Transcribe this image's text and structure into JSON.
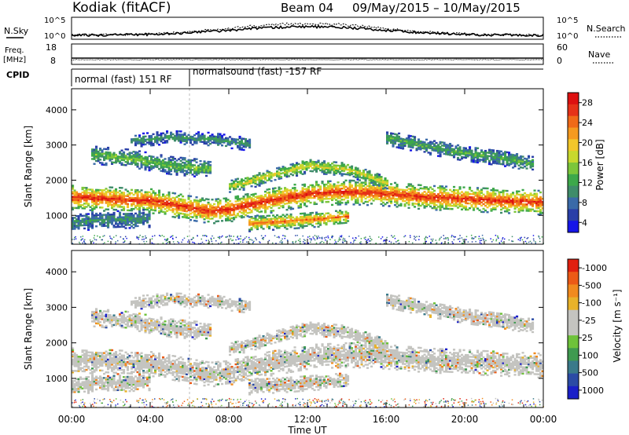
{
  "header": {
    "title": "Kodiak (fitACF)",
    "beam": "Beam 04",
    "date_range": "09/May/2015 – 10/May/2015"
  },
  "info": {
    "nsky_label": "N.Sky",
    "nsearch_label": "N.Search",
    "freq_label_1": "Freq.",
    "freq_label_2": "[MHz]",
    "nave_label": "Nave",
    "cpid_label": "CPID",
    "cpid_1": "normal (fast) 151 RF",
    "cpid_2": "normalsound (fast) -157 RF",
    "noise_ticks_left": [
      "10^5",
      "10^0"
    ],
    "noise_ticks_right": [
      "10^5",
      "10^0"
    ],
    "freq_ticks": [
      "18",
      "8"
    ],
    "nave_ticks": [
      "60",
      "0"
    ]
  },
  "colorbars": {
    "power": {
      "label": "Power [dB]",
      "ticks": [
        "4",
        "8",
        "12",
        "16",
        "20",
        "24",
        "28"
      ],
      "colors": [
        "#1515e8",
        "#2a3fa8",
        "#3a6aa8",
        "#3f8c6a",
        "#3da84a",
        "#7cc63a",
        "#c8d82e",
        "#f2c72a",
        "#f59a1f",
        "#f06a18",
        "#e63218",
        "#dd1010"
      ]
    },
    "velocity": {
      "label": "Velocity [m s⁻¹]",
      "ticks": [
        "1000",
        "500",
        "100",
        "25",
        "-25",
        "-100",
        "-500",
        "-1000"
      ],
      "colors": [
        "#1a1fc8",
        "#2b4ba5",
        "#3a7a8a",
        "#3f9a50",
        "#6ec23a",
        "#c4c4c0",
        "#c4c4c0",
        "#e8b22a",
        "#f18a1e",
        "#ec5a16",
        "#e0200f"
      ]
    }
  },
  "chart_data": [
    {
      "type": "heatmap",
      "title": "Power",
      "xlabel": "",
      "ylabel": "Slant Range [km]",
      "xlim": [
        "00:00",
        "24:00"
      ],
      "ylim": [
        180,
        4600
      ],
      "xticks": [
        "00:00",
        "04:00",
        "08:00",
        "12:00",
        "16:00",
        "20:00",
        "00:00"
      ],
      "yticks": [
        1000,
        2000,
        3000,
        4000
      ],
      "bands": [
        {
          "x": [
            0,
            2,
            4,
            6,
            7,
            8,
            10,
            12,
            14,
            16,
            18,
            20,
            22,
            24
          ],
          "center": [
            1500,
            1450,
            1400,
            1200,
            1100,
            1150,
            1400,
            1600,
            1650,
            1600,
            1500,
            1450,
            1400,
            1350
          ],
          "width": 350,
          "level": 26
        },
        {
          "x": [
            8,
            10,
            12,
            14,
            16
          ],
          "center": [
            1800,
            2100,
            2400,
            2300,
            1900
          ],
          "width": 200,
          "level": 16
        },
        {
          "x": [
            9,
            11,
            13,
            14
          ],
          "center": [
            750,
            820,
            900,
            950
          ],
          "width": 220,
          "level": 22
        },
        {
          "x": [
            1,
            3,
            5,
            7
          ],
          "center": [
            2700,
            2600,
            2400,
            2300
          ],
          "width": 250,
          "level": 12
        },
        {
          "x": [
            3,
            5,
            7,
            9
          ],
          "center": [
            3100,
            3200,
            3150,
            3000
          ],
          "width": 180,
          "level": 8
        },
        {
          "x": [
            16,
            18,
            20,
            22,
            23.5
          ],
          "center": [
            3200,
            2950,
            2750,
            2600,
            2450
          ],
          "width": 220,
          "level": 10
        },
        {
          "x": [
            0,
            2,
            4
          ],
          "center": [
            800,
            850,
            900
          ],
          "width": 250,
          "level": 8
        }
      ]
    },
    {
      "type": "heatmap",
      "title": "Velocity",
      "xlabel": "Time UT",
      "ylabel": "Slant Range [km]",
      "xlim": [
        "00:00",
        "24:00"
      ],
      "ylim": [
        180,
        4600
      ],
      "xticks": [
        "00:00",
        "04:00",
        "08:00",
        "12:00",
        "16:00",
        "20:00",
        "00:00"
      ],
      "yticks": [
        1000,
        2000,
        3000,
        4000
      ]
    }
  ]
}
